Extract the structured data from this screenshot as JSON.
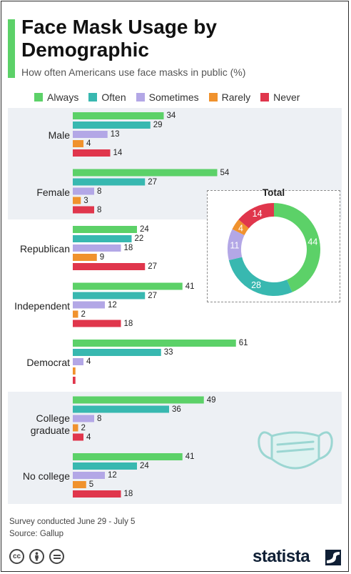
{
  "header": {
    "title": "Face Mask Usage by Demographic",
    "subtitle": "How often Americans use face masks in public (%)"
  },
  "colors": {
    "Always": "#5cd168",
    "Often": "#38b8b0",
    "Sometimes": "#b3a7e6",
    "Rarely": "#f0922d",
    "Never": "#e0364c",
    "band": "#edf0f4"
  },
  "chart_data": [
    {
      "type": "bar",
      "orientation": "horizontal",
      "categories": [
        "Male",
        "Female",
        "Republican",
        "Independent",
        "Democrat",
        "College graduate",
        "No college"
      ],
      "series": [
        {
          "name": "Always",
          "values": [
            34,
            54,
            24,
            41,
            61,
            49,
            41
          ]
        },
        {
          "name": "Often",
          "values": [
            29,
            27,
            22,
            27,
            33,
            36,
            24
          ]
        },
        {
          "name": "Sometimes",
          "values": [
            13,
            8,
            18,
            12,
            4,
            8,
            12
          ]
        },
        {
          "name": "Rarely",
          "values": [
            4,
            3,
            9,
            2,
            1,
            2,
            5
          ]
        },
        {
          "name": "Never",
          "values": [
            14,
            8,
            27,
            18,
            1,
            4,
            18
          ]
        }
      ],
      "unlabeled_values": [
        [
          4,
          3
        ],
        [
          4,
          4
        ]
      ],
      "legend_position": "top",
      "grid": false
    },
    {
      "type": "pie",
      "title": "Total",
      "donut": true,
      "labels": [
        "Always",
        "Often",
        "Sometimes",
        "Rarely",
        "Never"
      ],
      "values": [
        44,
        28,
        11,
        4,
        14
      ]
    }
  ],
  "footer": {
    "note": "Survey conducted June 29 - July 5",
    "source": "Source: Gallup",
    "brand": "statista",
    "license_icons": [
      "cc-icon",
      "by-icon",
      "nd-icon"
    ]
  }
}
